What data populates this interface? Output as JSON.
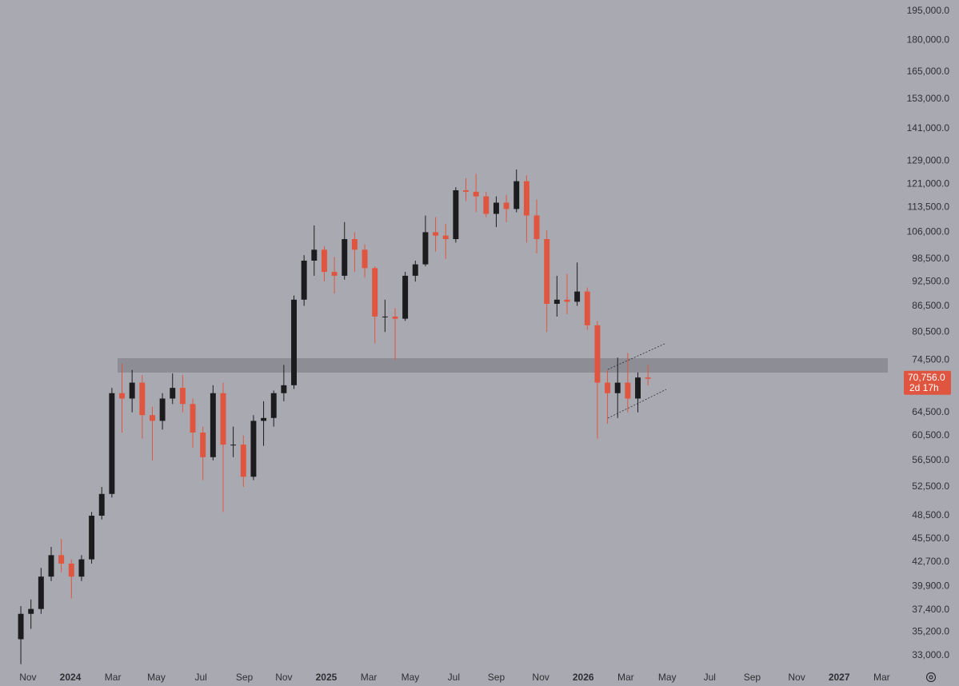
{
  "chart_data": {
    "type": "candlestick",
    "log_scale": true,
    "up_color": "#1c1c1f",
    "down_color": "#e0553f",
    "categories": [
      null,
      null,
      null,
      null,
      null,
      null,
      null,
      null,
      null,
      null,
      null,
      null,
      null,
      null,
      null,
      null,
      null,
      null,
      null,
      null,
      null,
      null,
      null,
      null,
      null,
      null,
      null,
      null,
      null,
      null,
      null,
      null,
      null,
      null,
      null,
      null,
      null,
      null,
      null,
      null,
      null,
      null,
      null,
      null,
      null,
      null,
      null,
      null,
      null,
      null,
      null,
      null,
      null,
      null,
      null,
      null,
      null,
      null,
      null,
      null,
      null,
      null,
      null
    ],
    "open": [
      34500,
      37000,
      37500,
      41000,
      43500,
      42500,
      41000,
      43000,
      48500,
      51500,
      68000,
      67000,
      70000,
      64000,
      63000,
      67000,
      69000,
      66000,
      61000,
      57000,
      68000,
      59000,
      59000,
      54000,
      63000,
      63500,
      68000,
      69500,
      88000,
      98000,
      101000,
      95000,
      94000,
      104000,
      101000,
      96000,
      84000,
      84000,
      83500,
      94000,
      97000,
      106000,
      105000,
      104000,
      119000,
      118500,
      117000,
      111500,
      115000,
      113000,
      122000,
      111000,
      104000,
      87000,
      88000,
      87500,
      90000,
      82000,
      70000,
      68000,
      70000,
      67000,
      71000
    ],
    "high": [
      37800,
      38500,
      42000,
      44500,
      45500,
      43000,
      43500,
      49000,
      52500,
      69000,
      73800,
      72500,
      71500,
      65500,
      68000,
      71800,
      71500,
      67000,
      62000,
      69500,
      70000,
      62000,
      60500,
      64000,
      66500,
      68500,
      73500,
      89000,
      99500,
      108000,
      102000,
      99000,
      109000,
      106000,
      102500,
      96500,
      88000,
      86000,
      95000,
      98000,
      111000,
      110500,
      108500,
      120000,
      123000,
      124500,
      118500,
      117000,
      117500,
      126000,
      124000,
      116000,
      106500,
      94000,
      94500,
      97500,
      91000,
      83000,
      72500,
      75000,
      76000,
      72000,
      73500
    ],
    "low": [
      32200,
      35500,
      37000,
      40500,
      41500,
      38600,
      40500,
      42500,
      48000,
      51000,
      61000,
      64500,
      60000,
      56500,
      61500,
      66000,
      64500,
      58500,
      53500,
      56500,
      49000,
      57000,
      52500,
      53500,
      58800,
      62000,
      66500,
      68800,
      86500,
      94000,
      92500,
      89500,
      93000,
      95000,
      93500,
      78000,
      80500,
      74500,
      83000,
      92500,
      96500,
      100500,
      98500,
      103000,
      115500,
      112000,
      110500,
      107500,
      109000,
      112000,
      103000,
      100000,
      80500,
      84000,
      84500,
      86500,
      81000,
      60000,
      62500,
      63500,
      64500,
      64500,
      69500
    ],
    "close": [
      37000,
      37500,
      41000,
      43500,
      42500,
      41000,
      43000,
      48500,
      51500,
      68000,
      67000,
      70000,
      64000,
      63000,
      67000,
      69000,
      66000,
      61000,
      57000,
      68000,
      59000,
      59000,
      54000,
      63000,
      63500,
      68000,
      69500,
      88000,
      98000,
      101000,
      95000,
      94000,
      104000,
      101000,
      96000,
      84000,
      84000,
      83500,
      94000,
      97000,
      106000,
      105000,
      104000,
      119000,
      118500,
      117000,
      111500,
      115000,
      113000,
      122000,
      111000,
      104000,
      87000,
      88000,
      87500,
      90000,
      82000,
      70000,
      68000,
      70000,
      67000,
      71000,
      70756
    ],
    "ylim": [
      31900,
      201100
    ],
    "yticks": [
      {
        "value": 195000,
        "label": "195,000.0"
      },
      {
        "value": 180000,
        "label": "180,000.0"
      },
      {
        "value": 165000,
        "label": "165,000.0"
      },
      {
        "value": 153000,
        "label": "153,000.0"
      },
      {
        "value": 141000,
        "label": "141,000.0"
      },
      {
        "value": 129000,
        "label": "129,000.0"
      },
      {
        "value": 121000,
        "label": "121,000.0"
      },
      {
        "value": 113500,
        "label": "113,500.0"
      },
      {
        "value": 106000,
        "label": "106,000.0"
      },
      {
        "value": 98500,
        "label": "98,500.0"
      },
      {
        "value": 92500,
        "label": "92,500.0"
      },
      {
        "value": 86500,
        "label": "86,500.0"
      },
      {
        "value": 80500,
        "label": "80,500.0"
      },
      {
        "value": 74500,
        "label": "74,500.0"
      },
      {
        "value": 64500,
        "label": "64,500.0"
      },
      {
        "value": 60500,
        "label": "60,500.0"
      },
      {
        "value": 56500,
        "label": "56,500.0"
      },
      {
        "value": 52500,
        "label": "52,500.0"
      },
      {
        "value": 48500,
        "label": "48,500.0"
      },
      {
        "value": 45500,
        "label": "45,500.0"
      },
      {
        "value": 42700,
        "label": "42,700.0"
      },
      {
        "value": 39900,
        "label": "39,900.0"
      },
      {
        "value": 37400,
        "label": "37,400.0"
      },
      {
        "value": 35200,
        "label": "35,200.0"
      },
      {
        "value": 33000,
        "label": "33,000.0"
      }
    ],
    "xlim": [
      -2.06,
      86.5
    ],
    "xticks": [
      {
        "value": 0.7,
        "label": "Nov"
      },
      {
        "value": 4.9,
        "label": "2024"
      },
      {
        "value": 9.1,
        "label": "Mar"
      },
      {
        "value": 13.4,
        "label": "May"
      },
      {
        "value": 17.8,
        "label": "Jul"
      },
      {
        "value": 22.1,
        "label": "Sep"
      },
      {
        "value": 26.0,
        "label": "Nov"
      },
      {
        "value": 30.2,
        "label": "2025"
      },
      {
        "value": 34.4,
        "label": "Mar"
      },
      {
        "value": 38.5,
        "label": "May"
      },
      {
        "value": 42.8,
        "label": "Jul"
      },
      {
        "value": 47.0,
        "label": "Sep"
      },
      {
        "value": 51.4,
        "label": "Nov"
      },
      {
        "value": 55.6,
        "label": "2026"
      },
      {
        "value": 59.8,
        "label": "Mar"
      },
      {
        "value": 63.9,
        "label": "May"
      },
      {
        "value": 68.1,
        "label": "Jul"
      },
      {
        "value": 72.3,
        "label": "Sep"
      },
      {
        "value": 76.7,
        "label": "Nov"
      },
      {
        "value": 80.9,
        "label": "2027"
      },
      {
        "value": 85.1,
        "label": "Mar"
      }
    ],
    "last_price": {
      "value": 70756,
      "label": "70,756.0"
    },
    "countdown": "2d 17h"
  }
}
